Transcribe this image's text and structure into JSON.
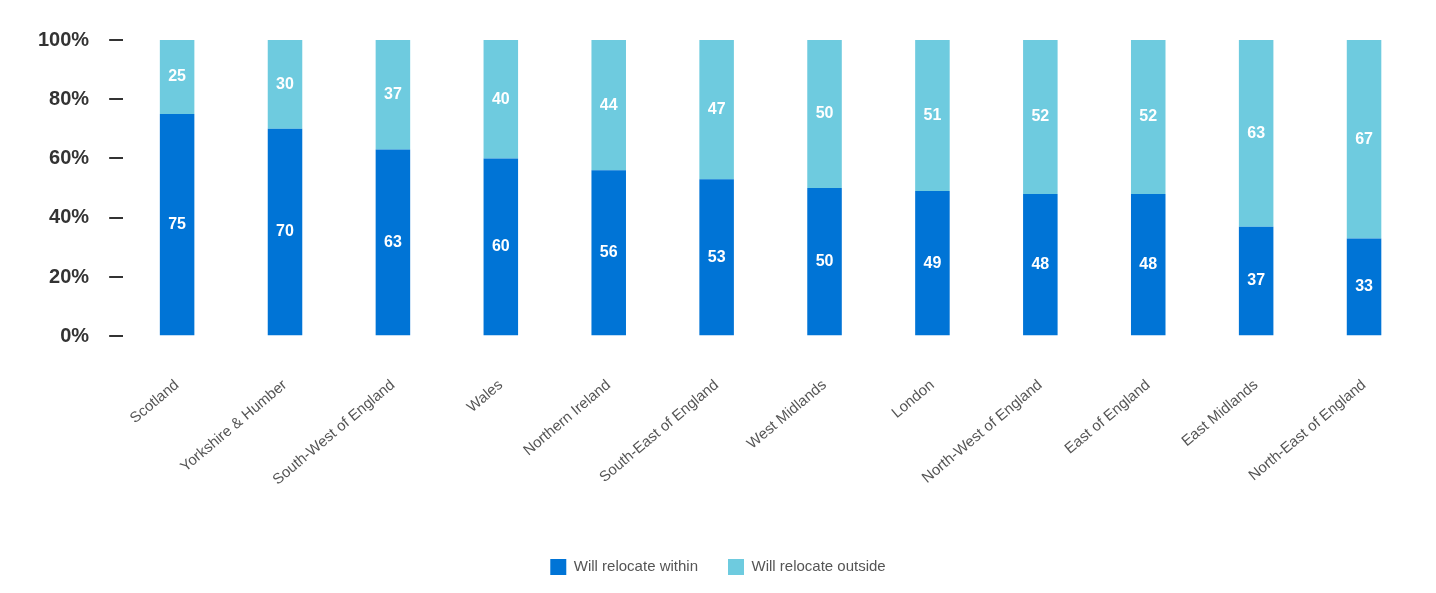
{
  "chart_data": {
    "type": "bar",
    "stacked": true,
    "categories": [
      "Scotland",
      "Yorkshire & Humber",
      "South-West of England",
      "Wales",
      "Northern Ireland",
      "South-East of England",
      "West Midlands",
      "London",
      "North-West of England",
      "East of England",
      "East Midlands",
      "North-East of England"
    ],
    "series": [
      {
        "name": "Will relocate within",
        "color": "#0074d6",
        "values": [
          75,
          70,
          63,
          60,
          56,
          53,
          50,
          49,
          48,
          48,
          37,
          33
        ]
      },
      {
        "name": "Will relocate outside",
        "color": "#6ecbdf",
        "values": [
          25,
          30,
          37,
          40,
          44,
          47,
          50,
          51,
          52,
          52,
          63,
          67
        ]
      }
    ],
    "ylim": [
      0,
      100
    ],
    "yticks": [
      {
        "value": 0,
        "label": "0%"
      },
      {
        "value": 20,
        "label": "20%"
      },
      {
        "value": 40,
        "label": "40%"
      },
      {
        "value": 60,
        "label": "60%"
      },
      {
        "value": 80,
        "label": "80%"
      },
      {
        "value": 100,
        "label": "100%"
      }
    ],
    "grid": false,
    "legend": "bottom",
    "data_labels": true
  }
}
